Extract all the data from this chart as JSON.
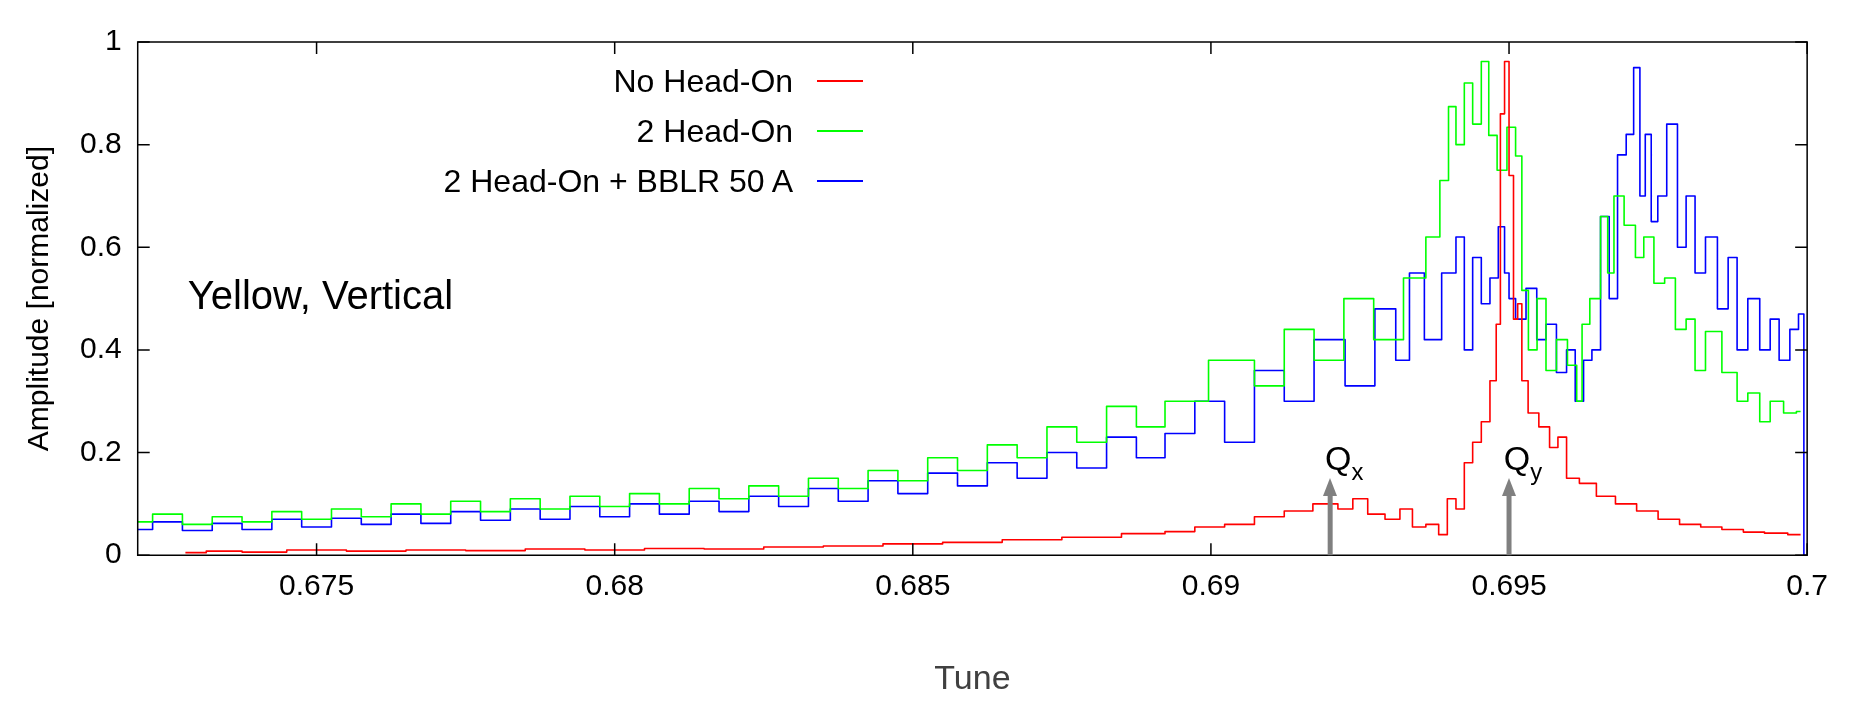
{
  "chart_data": {
    "type": "step",
    "xlabel": "Tune",
    "ylabel": "Amplitude [normalized]",
    "xlim": [
      0.672,
      0.7
    ],
    "ylim": [
      0,
      1
    ],
    "xticks": [
      0.675,
      0.68,
      0.685,
      0.69,
      0.695,
      0.7
    ],
    "yticks": [
      0,
      0.2,
      0.4,
      0.6,
      0.8,
      1
    ],
    "grid": false,
    "legend": "top left",
    "marker": "none",
    "line_style": "solid",
    "annotations": [
      "Yellow, Vertical"
    ],
    "ref_lines": [
      {
        "axis": "x",
        "value": 0.692,
        "label": "Q$_{x}$",
        "color": "#808080"
      },
      {
        "axis": "x",
        "value": 0.695,
        "label": "Q$_{y}$",
        "color": "#808080"
      }
    ],
    "series": [
      {
        "name": "No Head-On",
        "color": "#ff0000",
        "x": [
          0.6728,
          0.6735,
          0.674,
          0.675,
          0.676,
          0.677,
          0.678,
          0.679,
          0.68,
          0.681,
          0.682,
          0.683,
          0.684,
          0.685,
          0.686,
          0.687,
          0.688,
          0.689,
          0.68946,
          0.69,
          0.69046,
          0.691,
          0.69146,
          0.69196,
          0.6923,
          0.69246,
          0.6928,
          0.69304,
          0.6933,
          0.69346,
          0.69375,
          0.69389,
          0.69404,
          0.69418,
          0.69432,
          0.69446,
          0.69461,
          0.69475,
          0.69482,
          0.69489,
          0.69496,
          0.69504,
          0.69511,
          0.69518,
          0.69525,
          0.69539,
          0.69561,
          0.69575,
          0.69589,
          0.69604,
          0.69632,
          0.69661,
          0.69696,
          0.69732,
          0.69768,
          0.69804,
          0.69839,
          0.69875,
          0.69911,
          0.69946,
          0.69989
        ],
        "values": [
          0.005,
          0.008,
          0.006,
          0.01,
          0.008,
          0.01,
          0.009,
          0.012,
          0.01,
          0.013,
          0.012,
          0.016,
          0.018,
          0.022,
          0.025,
          0.03,
          0.035,
          0.042,
          0.046,
          0.055,
          0.06,
          0.075,
          0.086,
          0.1,
          0.09,
          0.11,
          0.08,
          0.07,
          0.09,
          0.055,
          0.06,
          0.04,
          0.11,
          0.09,
          0.18,
          0.22,
          0.26,
          0.34,
          0.45,
          0.86,
          0.962,
          0.74,
          0.46,
          0.49,
          0.34,
          0.277,
          0.25,
          0.21,
          0.23,
          0.15,
          0.14,
          0.115,
          0.1,
          0.086,
          0.07,
          0.06,
          0.055,
          0.05,
          0.045,
          0.043,
          0.04
        ]
      },
      {
        "name": "2 Head-On",
        "color": "#00ff00",
        "x": [
          0.672,
          0.6725,
          0.673,
          0.6735,
          0.674,
          0.6745,
          0.675,
          0.6755,
          0.676,
          0.6765,
          0.677,
          0.6775,
          0.678,
          0.6785,
          0.679,
          0.6795,
          0.68,
          0.6805,
          0.681,
          0.6815,
          0.682,
          0.6825,
          0.683,
          0.6835,
          0.684,
          0.6845,
          0.685,
          0.6855,
          0.686,
          0.6865,
          0.687,
          0.6875,
          0.688,
          0.6885,
          0.689,
          0.68946,
          0.69046,
          0.691,
          0.69146,
          0.692,
          0.69246,
          0.693,
          0.69346,
          0.69375,
          0.69393,
          0.69404,
          0.69418,
          0.69432,
          0.69446,
          0.69461,
          0.69471,
          0.69489,
          0.69504,
          0.69518,
          0.69525,
          0.6954,
          0.69554,
          0.6957,
          0.69589,
          0.69607,
          0.6962,
          0.69625,
          0.69646,
          0.69661,
          0.6967,
          0.69682,
          0.69704,
          0.6972,
          0.69732,
          0.69754,
          0.69768,
          0.6979,
          0.69804,
          0.6982,
          0.69839,
          0.69875,
          0.6989,
          0.69911,
          0.6993,
          0.69946,
          0.69975,
          0.69989
        ],
        "values": [
          0.065,
          0.08,
          0.06,
          0.075,
          0.065,
          0.085,
          0.07,
          0.09,
          0.075,
          0.1,
          0.08,
          0.105,
          0.085,
          0.11,
          0.09,
          0.115,
          0.095,
          0.12,
          0.1,
          0.13,
          0.11,
          0.135,
          0.115,
          0.15,
          0.13,
          0.165,
          0.145,
          0.19,
          0.165,
          0.215,
          0.19,
          0.25,
          0.22,
          0.29,
          0.25,
          0.3,
          0.38,
          0.33,
          0.44,
          0.38,
          0.5,
          0.42,
          0.54,
          0.62,
          0.73,
          0.874,
          0.8,
          0.92,
          0.84,
          0.962,
          0.818,
          0.75,
          0.834,
          0.778,
          0.516,
          0.4,
          0.5,
          0.36,
          0.42,
          0.37,
          0.3,
          0.45,
          0.5,
          0.66,
          0.55,
          0.7,
          0.643,
          0.58,
          0.62,
          0.53,
          0.54,
          0.44,
          0.46,
          0.36,
          0.436,
          0.356,
          0.3,
          0.316,
          0.26,
          0.3,
          0.277,
          0.28
        ]
      },
      {
        "name": "2 Head-On + BBLR 50 A",
        "color": "#0000ff",
        "x": [
          0.672,
          0.6725,
          0.673,
          0.6735,
          0.674,
          0.6745,
          0.675,
          0.6755,
          0.676,
          0.6765,
          0.677,
          0.6775,
          0.678,
          0.6785,
          0.679,
          0.6795,
          0.68,
          0.6805,
          0.681,
          0.6815,
          0.682,
          0.6825,
          0.683,
          0.6835,
          0.684,
          0.6845,
          0.685,
          0.6855,
          0.686,
          0.6865,
          0.687,
          0.6875,
          0.688,
          0.6885,
          0.689,
          0.68946,
          0.69,
          0.69046,
          0.691,
          0.69146,
          0.692,
          0.6925,
          0.693,
          0.6932,
          0.69346,
          0.6937,
          0.69404,
          0.69418,
          0.69432,
          0.69446,
          0.69461,
          0.69475,
          0.69489,
          0.69496,
          0.69504,
          0.69518,
          0.69539,
          0.69554,
          0.6957,
          0.69589,
          0.69604,
          0.69618,
          0.69632,
          0.69646,
          0.69661,
          0.69675,
          0.69689,
          0.69704,
          0.69714,
          0.69725,
          0.69732,
          0.69745,
          0.69754,
          0.69775,
          0.6979,
          0.69804,
          0.6982,
          0.69839,
          0.6986,
          0.69875,
          0.6989,
          0.69911,
          0.6993,
          0.69946,
          0.6996,
          0.69982,
          0.69989,
          0.7
        ],
        "values": [
          0.05,
          0.065,
          0.048,
          0.062,
          0.05,
          0.07,
          0.055,
          0.072,
          0.06,
          0.08,
          0.062,
          0.085,
          0.068,
          0.09,
          0.07,
          0.095,
          0.075,
          0.1,
          0.08,
          0.105,
          0.085,
          0.115,
          0.095,
          0.13,
          0.105,
          0.145,
          0.12,
          0.16,
          0.135,
          0.18,
          0.15,
          0.2,
          0.17,
          0.23,
          0.19,
          0.237,
          0.3,
          0.22,
          0.36,
          0.3,
          0.42,
          0.33,
          0.48,
          0.38,
          0.55,
          0.42,
          0.55,
          0.62,
          0.4,
          0.58,
          0.49,
          0.54,
          0.64,
          0.55,
          0.5,
          0.46,
          0.52,
          0.42,
          0.45,
          0.356,
          0.4,
          0.3,
          0.38,
          0.4,
          0.66,
          0.5,
          0.78,
          0.82,
          0.95,
          0.7,
          0.82,
          0.65,
          0.7,
          0.84,
          0.6,
          0.7,
          0.55,
          0.62,
          0.48,
          0.58,
          0.4,
          0.5,
          0.4,
          0.46,
          0.38,
          0.44,
          0.47,
          0
        ]
      }
    ]
  }
}
